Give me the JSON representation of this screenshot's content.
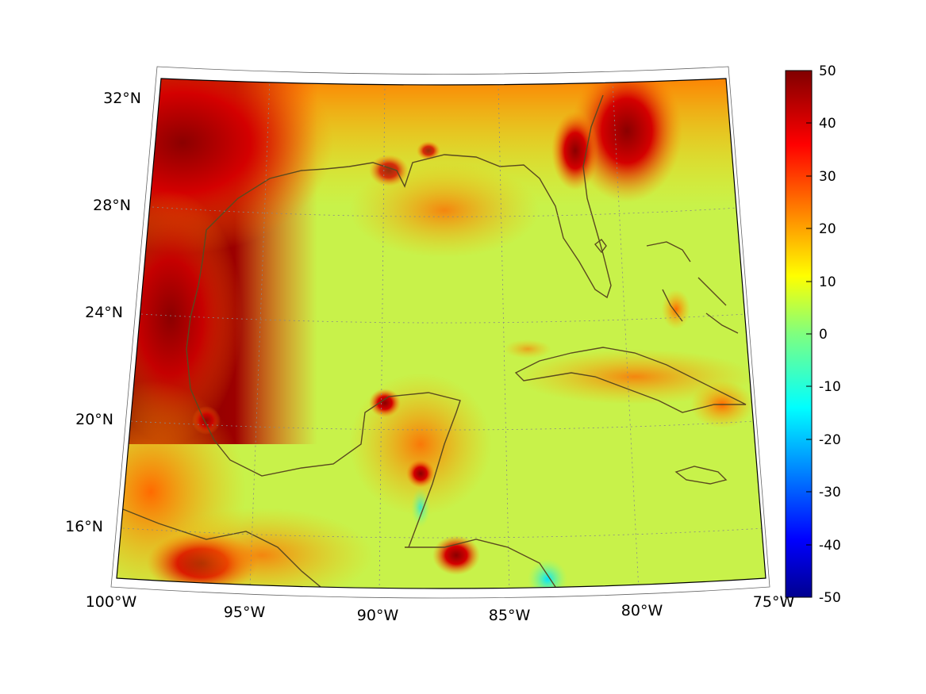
{
  "map": {
    "region": "Gulf of Mexico and Caribbean",
    "lon_labels": [
      "100°W",
      "95°W",
      "90°W",
      "85°W",
      "80°W",
      "75°W"
    ],
    "lat_labels": [
      "32°N",
      "28°N",
      "24°N",
      "20°N",
      "16°N"
    ],
    "colorbar": {
      "colormap": "jet",
      "min": -50,
      "max": 50,
      "tick_labels": [
        "50",
        "40",
        "30",
        "20",
        "10",
        "0",
        "-10",
        "-20",
        "-30",
        "-40",
        "-50"
      ]
    },
    "coastline_color": "#5a4a1f",
    "gridlines": "dotted"
  }
}
